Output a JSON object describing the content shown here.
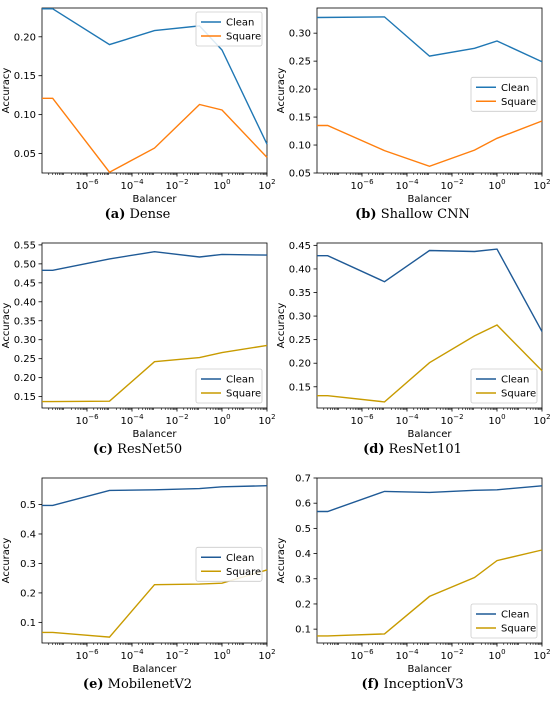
{
  "chart_data": [
    {
      "type": "line",
      "caption_letter": "(a)",
      "caption_name": "Dense",
      "xlabel": "Balancer",
      "ylabel": "Accuracy",
      "xscale": "log",
      "xlim": [
        1e-08,
        100
      ],
      "ylim": [
        0.025,
        0.237
      ],
      "yticks": [
        0.05,
        0.1,
        0.15,
        0.2
      ],
      "ytick_labels": [
        "0.05",
        "0.10",
        "0.15",
        "0.20"
      ],
      "xticks": [
        1e-06,
        0.0001,
        0.01,
        1,
        100
      ],
      "xtick_labels": [
        "10−6",
        "10−4",
        "10−2",
        "100",
        "102"
      ],
      "legend_position": "top-right",
      "series": [
        {
          "name": "Clean",
          "color": "#1f77b4",
          "x": [
            1e-08,
            3e-08,
            1e-05,
            0.001,
            0.1,
            1,
            100
          ],
          "y": [
            0.236,
            0.236,
            0.19,
            0.208,
            0.214,
            0.183,
            0.062
          ]
        },
        {
          "name": "Square",
          "color": "#ff7f0e",
          "x": [
            1e-08,
            3e-08,
            1e-05,
            0.001,
            0.1,
            1,
            100
          ],
          "y": [
            0.121,
            0.121,
            0.026,
            0.057,
            0.113,
            0.106,
            0.045
          ]
        }
      ]
    },
    {
      "type": "line",
      "caption_letter": "(b)",
      "caption_name": "Shallow CNN",
      "xlabel": "Balancer",
      "ylabel": "Accuracy",
      "xscale": "log",
      "xlim": [
        1e-08,
        100
      ],
      "ylim": [
        0.05,
        0.345
      ],
      "yticks": [
        0.05,
        0.1,
        0.15,
        0.2,
        0.25,
        0.3
      ],
      "ytick_labels": [
        "0.05",
        "0.10",
        "0.15",
        "0.20",
        "0.25",
        "0.30"
      ],
      "xticks": [
        1e-06,
        0.0001,
        0.01,
        1,
        100
      ],
      "xtick_labels": [
        "10−6",
        "10−4",
        "10−2",
        "100",
        "102"
      ],
      "legend_position": "center-right",
      "series": [
        {
          "name": "Clean",
          "color": "#1f77b4",
          "x": [
            1e-08,
            1e-05,
            0.001,
            0.1,
            1,
            100
          ],
          "y": [
            0.328,
            0.329,
            0.259,
            0.273,
            0.286,
            0.249
          ]
        },
        {
          "name": "Square",
          "color": "#ff7f0e",
          "x": [
            1e-08,
            3e-08,
            1e-05,
            0.001,
            0.1,
            1,
            100
          ],
          "y": [
            0.135,
            0.135,
            0.09,
            0.062,
            0.091,
            0.112,
            0.143
          ]
        }
      ]
    },
    {
      "type": "line",
      "caption_letter": "(c)",
      "caption_name": "ResNet50",
      "xlabel": "Balancer",
      "ylabel": "Accuracy",
      "xscale": "log",
      "xlim": [
        1e-08,
        100
      ],
      "ylim": [
        0.12,
        0.555
      ],
      "yticks": [
        0.15,
        0.2,
        0.25,
        0.3,
        0.35,
        0.4,
        0.45,
        0.5,
        0.55
      ],
      "ytick_labels": [
        "0.15",
        "0.20",
        "0.25",
        "0.30",
        "0.35",
        "0.40",
        "0.45",
        "0.50",
        "0.55"
      ],
      "xticks": [
        1e-06,
        0.0001,
        0.01,
        1,
        100
      ],
      "xtick_labels": [
        "10−6",
        "10−4",
        "10−2",
        "100",
        "102"
      ],
      "legend_position": "bottom-right",
      "series": [
        {
          "name": "Clean",
          "color": "#1f5a96",
          "x": [
            1e-08,
            3e-08,
            1e-05,
            0.001,
            0.1,
            1,
            100
          ],
          "y": [
            0.483,
            0.483,
            0.513,
            0.532,
            0.518,
            0.525,
            0.523
          ]
        },
        {
          "name": "Square",
          "color": "#c89b00",
          "x": [
            1e-08,
            3e-08,
            1e-05,
            0.001,
            0.1,
            1,
            100
          ],
          "y": [
            0.137,
            0.137,
            0.138,
            0.242,
            0.253,
            0.266,
            0.285
          ]
        }
      ]
    },
    {
      "type": "line",
      "caption_letter": "(d)",
      "caption_name": "ResNet101",
      "xlabel": "Balancer",
      "ylabel": "Accuracy",
      "xscale": "log",
      "xlim": [
        1e-08,
        100
      ],
      "ylim": [
        0.105,
        0.455
      ],
      "yticks": [
        0.15,
        0.2,
        0.25,
        0.3,
        0.35,
        0.4,
        0.45
      ],
      "ytick_labels": [
        "0.15",
        "0.20",
        "0.25",
        "0.30",
        "0.35",
        "0.40",
        "0.45"
      ],
      "xticks": [
        1e-06,
        0.0001,
        0.01,
        1,
        100
      ],
      "xtick_labels": [
        "10−6",
        "10−4",
        "10−2",
        "100",
        "102"
      ],
      "legend_position": "bottom-right",
      "series": [
        {
          "name": "Clean",
          "color": "#1f5a96",
          "x": [
            1e-08,
            3e-08,
            1e-05,
            0.001,
            0.1,
            1,
            100
          ],
          "y": [
            0.428,
            0.428,
            0.373,
            0.439,
            0.437,
            0.442,
            0.267
          ]
        },
        {
          "name": "Square",
          "color": "#c89b00",
          "x": [
            1e-08,
            3e-08,
            1e-05,
            0.001,
            0.1,
            1,
            100
          ],
          "y": [
            0.131,
            0.131,
            0.118,
            0.201,
            0.258,
            0.281,
            0.184
          ]
        }
      ]
    },
    {
      "type": "line",
      "caption_letter": "(e)",
      "caption_name": "MobilenetV2",
      "xlabel": "Balancer",
      "ylabel": "Accuracy",
      "xscale": "log",
      "xlim": [
        1e-08,
        100
      ],
      "ylim": [
        0.03,
        0.59
      ],
      "yticks": [
        0.1,
        0.2,
        0.3,
        0.4,
        0.5
      ],
      "ytick_labels": [
        "0.1",
        "0.2",
        "0.3",
        "0.4",
        "0.5"
      ],
      "xticks": [
        1e-06,
        0.0001,
        0.01,
        1,
        100
      ],
      "xtick_labels": [
        "10−6",
        "10−4",
        "10−2",
        "100",
        "102"
      ],
      "legend_position": "center-right",
      "series": [
        {
          "name": "Clean",
          "color": "#1f5a96",
          "x": [
            1e-08,
            3e-08,
            1e-05,
            0.001,
            0.1,
            1,
            100
          ],
          "y": [
            0.497,
            0.497,
            0.548,
            0.55,
            0.554,
            0.56,
            0.564
          ]
        },
        {
          "name": "Square",
          "color": "#c89b00",
          "x": [
            1e-08,
            3e-08,
            1e-05,
            0.001,
            0.1,
            1,
            100
          ],
          "y": [
            0.066,
            0.066,
            0.05,
            0.228,
            0.23,
            0.233,
            0.278
          ]
        }
      ]
    },
    {
      "type": "line",
      "caption_letter": "(f)",
      "caption_name": "InceptionV3",
      "xlabel": "Balancer",
      "ylabel": "Accuracy",
      "xscale": "log",
      "xlim": [
        1e-08,
        100
      ],
      "ylim": [
        0.045,
        0.7
      ],
      "yticks": [
        0.1,
        0.2,
        0.3,
        0.4,
        0.5,
        0.6,
        0.7
      ],
      "ytick_labels": [
        "0.1",
        "0.2",
        "0.3",
        "0.4",
        "0.5",
        "0.6",
        "0.7"
      ],
      "xticks": [
        1e-06,
        0.0001,
        0.01,
        1,
        100
      ],
      "xtick_labels": [
        "10−6",
        "10−4",
        "10−2",
        "100",
        "102"
      ],
      "legend_position": "bottom-right",
      "series": [
        {
          "name": "Clean",
          "color": "#1f5a96",
          "x": [
            1e-08,
            3e-08,
            1e-05,
            0.001,
            0.1,
            1,
            100
          ],
          "y": [
            0.567,
            0.567,
            0.647,
            0.643,
            0.651,
            0.653,
            0.669
          ]
        },
        {
          "name": "Square",
          "color": "#c89b00",
          "x": [
            1e-08,
            3e-08,
            1e-05,
            0.001,
            0.1,
            1,
            100
          ],
          "y": [
            0.073,
            0.073,
            0.081,
            0.23,
            0.305,
            0.372,
            0.414
          ]
        }
      ]
    }
  ]
}
